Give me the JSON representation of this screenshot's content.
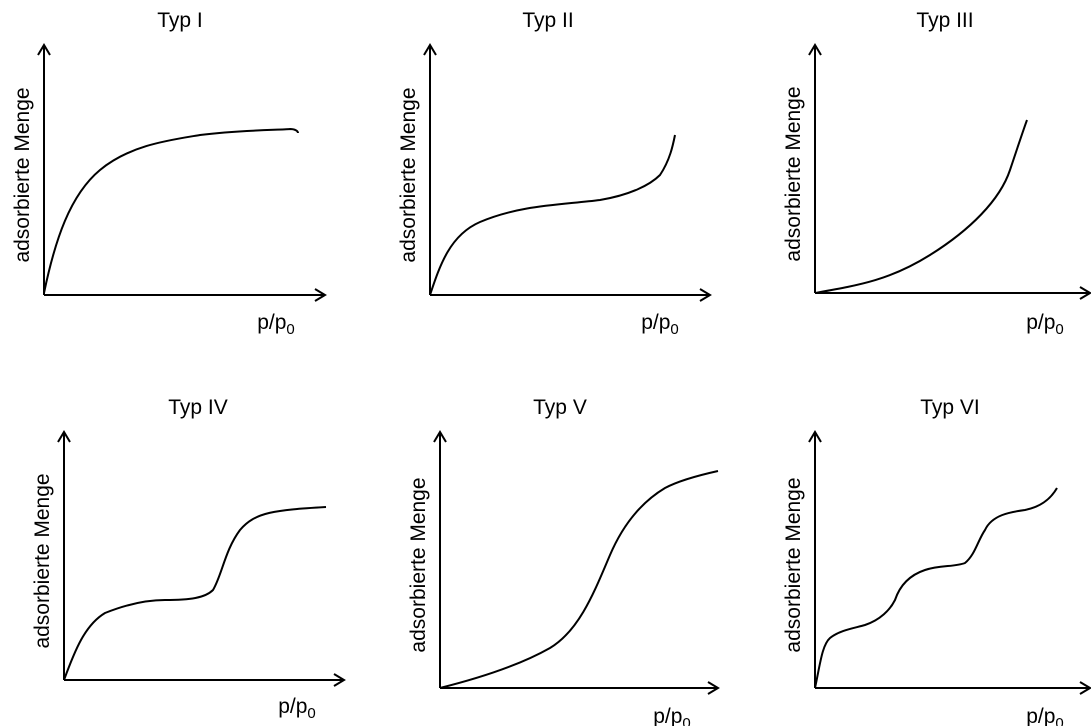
{
  "panels": [
    {
      "title": "Typ I",
      "y_label": "adsorbierte Menge",
      "x_label": {
        "text": "p/p",
        "subscript": "0"
      }
    },
    {
      "title": "Typ II",
      "y_label": "adsorbierte Menge",
      "x_label": {
        "text": "p/p",
        "subscript": "0"
      }
    },
    {
      "title": "Typ III",
      "y_label": "adsorbierte Menge",
      "x_label": {
        "text": "p/p",
        "subscript": "0"
      }
    },
    {
      "title": "Typ IV",
      "y_label": "adsorbierte Menge",
      "x_label": {
        "text": "p/p",
        "subscript": "0"
      }
    },
    {
      "title": "Typ V",
      "y_label": "adsorbierte Menge",
      "x_label": {
        "text": "p/p",
        "subscript": "0"
      }
    },
    {
      "title": "Typ VI",
      "y_label": "adsorbierte Menge",
      "x_label": {
        "text": "p/p",
        "subscript": "0"
      }
    }
  ]
}
